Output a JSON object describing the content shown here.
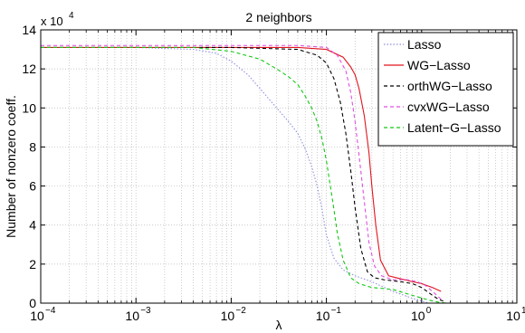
{
  "chart_data": {
    "type": "line",
    "title": "2 neighbors",
    "xlabel": "λ",
    "ylabel": "Number of nonzero coeff.",
    "y_multiplier_label": "x 10",
    "y_multiplier_exponent": "4",
    "x_scale": "log",
    "xlim": [
      0.0001,
      10
    ],
    "ylim": [
      0,
      14
    ],
    "grid": true,
    "legend_position": "top-right",
    "x_ticks": [
      {
        "base": "10",
        "exp": "−4",
        "value": 0.0001
      },
      {
        "base": "10",
        "exp": "−3",
        "value": 0.001
      },
      {
        "base": "10",
        "exp": "−2",
        "value": 0.01
      },
      {
        "base": "10",
        "exp": "−1",
        "value": 0.1
      },
      {
        "base": "10",
        "exp": "0",
        "value": 1
      },
      {
        "base": "10",
        "exp": "1",
        "value": 10
      }
    ],
    "y_ticks": [
      "0",
      "2",
      "4",
      "6",
      "8",
      "10",
      "12",
      "14"
    ],
    "series": [
      {
        "name": "Lasso",
        "color": "#8f8fe0",
        "dash": "1.5,2",
        "x": [
          0.0001,
          0.001,
          0.004,
          0.007,
          0.01,
          0.015,
          0.02,
          0.03,
          0.04,
          0.05,
          0.06,
          0.07,
          0.08,
          0.09,
          0.1,
          0.12,
          0.15,
          0.2,
          0.3,
          0.5,
          0.8,
          1.0,
          1.2
        ],
        "y": [
          13.1,
          13.1,
          13.0,
          12.8,
          12.4,
          11.7,
          11.0,
          10.0,
          9.3,
          8.7,
          7.9,
          7.0,
          6.0,
          4.8,
          3.5,
          2.3,
          1.7,
          1.4,
          1.1,
          0.6,
          0.25,
          0.1,
          0.0
        ]
      },
      {
        "name": "WG−Lasso",
        "color": "#e0141e",
        "dash": "",
        "x": [
          0.0001,
          0.01,
          0.05,
          0.1,
          0.15,
          0.18,
          0.2,
          0.22,
          0.25,
          0.28,
          0.3,
          0.33,
          0.37,
          0.45,
          0.6,
          0.8,
          1.0,
          1.3,
          1.6
        ],
        "y": [
          13.1,
          13.1,
          13.1,
          13.0,
          12.6,
          12.1,
          11.7,
          11.0,
          9.6,
          7.7,
          6.0,
          4.0,
          2.2,
          1.4,
          1.25,
          1.1,
          1.0,
          0.8,
          0.6
        ]
      },
      {
        "name": "orthWG−Lasso",
        "color": "#000000",
        "dash": "4,3",
        "x": [
          0.0001,
          0.01,
          0.05,
          0.08,
          0.1,
          0.12,
          0.14,
          0.16,
          0.18,
          0.2,
          0.23,
          0.27,
          0.32,
          0.4,
          0.6,
          0.8,
          1.0,
          1.3,
          1.5,
          1.8
        ],
        "y": [
          13.1,
          13.1,
          13.0,
          12.7,
          12.3,
          11.5,
          10.3,
          8.7,
          6.8,
          4.9,
          2.8,
          1.6,
          1.3,
          1.2,
          1.1,
          1.0,
          0.8,
          0.4,
          0.2,
          0.05
        ]
      },
      {
        "name": "cvxWG−Lasso",
        "color": "#e04fe0",
        "dash": "4,3",
        "x": [
          0.0001,
          0.01,
          0.05,
          0.1,
          0.13,
          0.16,
          0.18,
          0.2,
          0.22,
          0.25,
          0.28,
          0.32,
          0.38,
          0.5,
          0.7,
          0.9,
          1.1,
          1.3,
          1.6
        ],
        "y": [
          13.2,
          13.2,
          13.2,
          13.1,
          12.7,
          11.9,
          10.8,
          9.3,
          7.6,
          5.2,
          3.1,
          1.9,
          1.4,
          1.2,
          1.2,
          1.1,
          0.9,
          0.6,
          0.2
        ]
      },
      {
        "name": "Latent−G−Lasso",
        "color": "#14c814",
        "dash": "4,3",
        "x": [
          0.0001,
          0.001,
          0.004,
          0.01,
          0.02,
          0.03,
          0.04,
          0.05,
          0.06,
          0.07,
          0.08,
          0.09,
          0.1,
          0.11,
          0.12,
          0.13,
          0.15,
          0.18,
          0.22,
          0.3,
          0.5,
          0.8,
          1.2,
          1.5,
          1.8
        ],
        "y": [
          13.1,
          13.1,
          13.1,
          12.9,
          12.5,
          12.0,
          11.6,
          11.2,
          10.6,
          10.0,
          9.3,
          8.4,
          7.3,
          6.0,
          4.8,
          3.6,
          2.2,
          1.3,
          1.0,
          0.8,
          0.7,
          0.4,
          0.15,
          0.05,
          0.0
        ]
      }
    ]
  }
}
